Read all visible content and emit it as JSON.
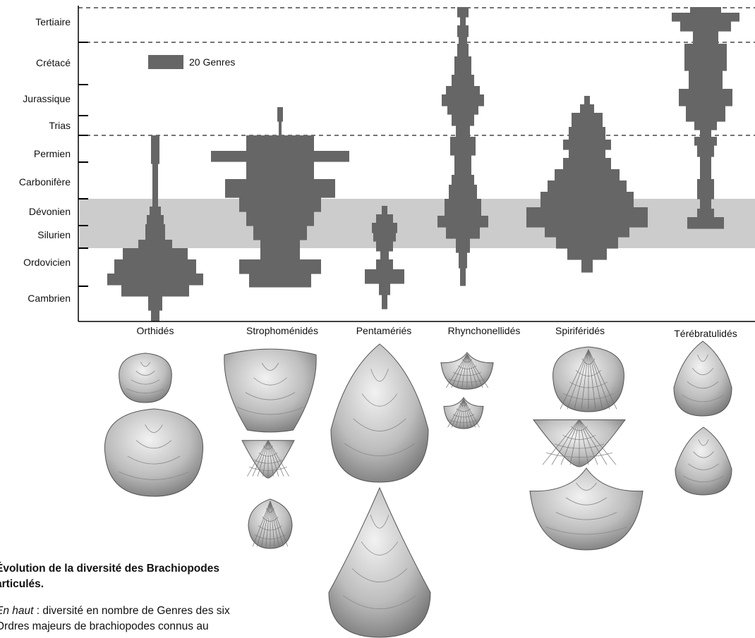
{
  "chart_data": {
    "type": "spindle",
    "periods": [
      "Tertiaire",
      "Crétacé",
      "Jurassique",
      "Trias",
      "Permien",
      "Carbonifère",
      "Dévonien",
      "Silurien",
      "Ordovicien",
      "Cambrien"
    ],
    "legend": {
      "label": "20 Genres",
      "value": 20
    },
    "orders": [
      {
        "name": "Orthidés",
        "shells": 2
      },
      {
        "name": "Strophoménidés",
        "shells": 3
      },
      {
        "name": "Pentamériés",
        "shells": 2
      },
      {
        "name": "Rhynchonellidés",
        "shells": 2
      },
      {
        "name": "Spiriféridés",
        "shells": 3
      },
      {
        "name": "Térébratulidés",
        "shells": 2
      }
    ],
    "colors": {
      "bar": "#666666",
      "band": "#cccccc",
      "axis": "#000000"
    }
  },
  "caption": {
    "title_line1": "Évolution de la diversité des Brachiopodes",
    "title_line2": "articulés.",
    "body_em": "En haut",
    "body_rest": " : diversité en nombre de Genres des six",
    "body_line2": "Ordres majeurs de brachiopodes connus au"
  }
}
